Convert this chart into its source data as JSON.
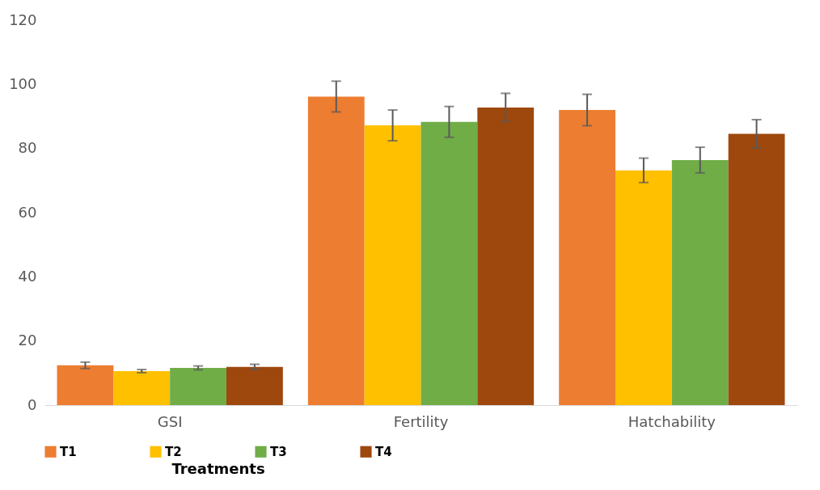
{
  "chart_data": {
    "type": "bar",
    "legend_title": "Treatments",
    "categories": [
      "GSI",
      "Fertility",
      "Hatchability"
    ],
    "series": [
      {
        "name": "T1",
        "color": "#ed7d31",
        "values": [
          12.4,
          96.2,
          92
        ],
        "errors": [
          1,
          4.8,
          4.9
        ]
      },
      {
        "name": "T2",
        "color": "#ffc000",
        "values": [
          10.6,
          87.2,
          73.2
        ],
        "errors": [
          0.5,
          4.8,
          3.8
        ]
      },
      {
        "name": "T3",
        "color": "#70ad47",
        "values": [
          11.6,
          88.3,
          76.4
        ],
        "errors": [
          0.6,
          4.8,
          4
        ]
      },
      {
        "name": "T4",
        "color": "#9e480e",
        "values": [
          11.9,
          92.8,
          84.6
        ],
        "errors": [
          0.8,
          4.4,
          4.4
        ]
      }
    ],
    "ylim": [
      0,
      120
    ],
    "yticks": [
      0,
      20,
      40,
      60,
      80,
      100,
      120
    ],
    "grid": false,
    "legend": "bottom"
  }
}
